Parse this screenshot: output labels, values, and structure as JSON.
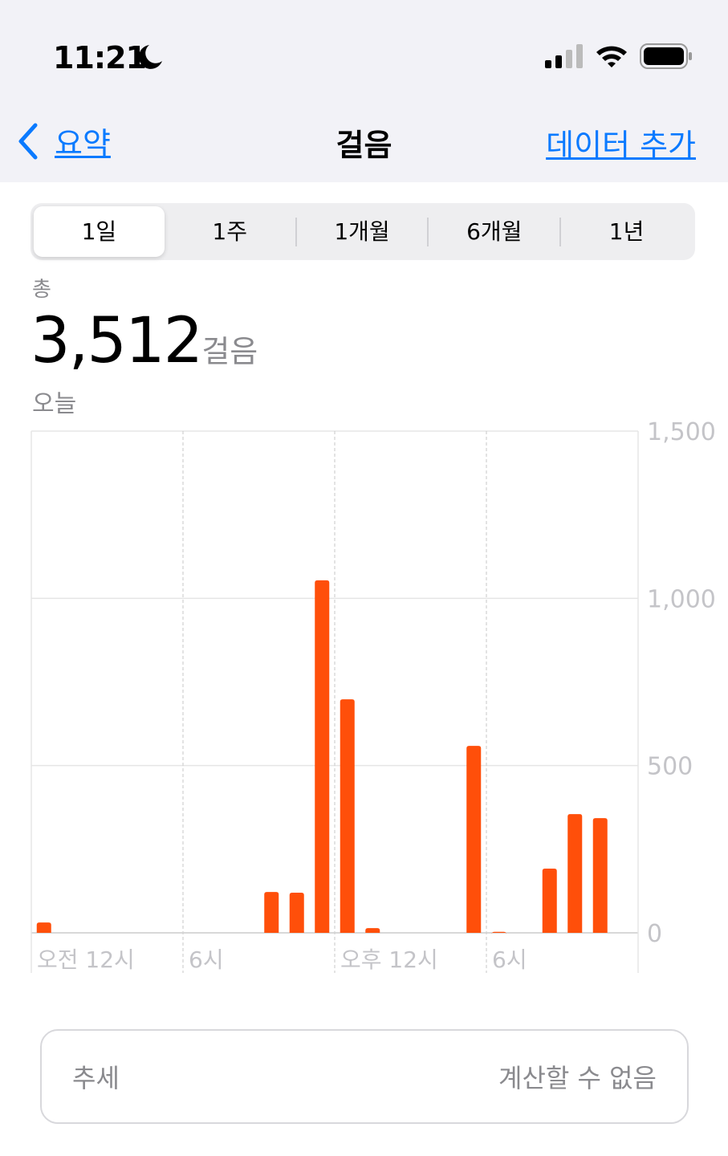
{
  "status_bar": {
    "time": "11:21",
    "focus_icon": "moon-icon",
    "signal_icon": "cellular-signal-icon",
    "wifi_icon": "wifi-icon",
    "battery_icon": "battery-icon"
  },
  "nav": {
    "back_label": "요약",
    "title": "걸음",
    "action_label": "데이터 추가",
    "accent": "#0a7aff"
  },
  "segments": [
    {
      "label": "1일",
      "selected": true
    },
    {
      "label": "1주"
    },
    {
      "label": "1개월"
    },
    {
      "label": "6개월"
    },
    {
      "label": "1년"
    }
  ],
  "summary": {
    "label": "총",
    "value": "3,512",
    "unit": "걸음",
    "period": "오늘"
  },
  "chart_data": {
    "type": "bar",
    "x": [
      0,
      9,
      10,
      11,
      12,
      13,
      17,
      18,
      20,
      21,
      22
    ],
    "values": [
      31,
      122,
      120,
      1054,
      698,
      14,
      559,
      3,
      192,
      355,
      343
    ],
    "xlim": [
      0,
      24
    ],
    "ylim": [
      0,
      1500
    ],
    "yticks": [
      "0",
      "500",
      "1,000",
      "1,500"
    ],
    "xticks": [
      "오전 12시",
      "6시",
      "오후 12시",
      "6시"
    ],
    "color": "#ff4f0a",
    "grid": true
  },
  "trend": {
    "label": "추세",
    "value": "계산할 수 없음"
  }
}
